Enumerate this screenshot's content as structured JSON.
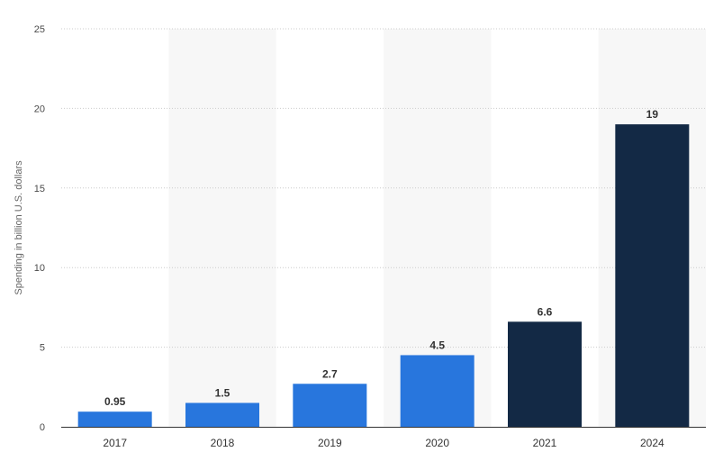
{
  "chart_data": {
    "type": "bar",
    "title": "",
    "xlabel": "",
    "ylabel": "Spending in billion U.S. dollars",
    "categories": [
      "2017",
      "2018",
      "2019",
      "2020",
      "2021",
      "2024"
    ],
    "values": [
      0.95,
      1.5,
      2.7,
      4.5,
      6.6,
      19
    ],
    "value_labels": [
      "0.95",
      "1.5",
      "2.7",
      "4.5",
      "6.6",
      "19"
    ],
    "bar_colors": [
      "#2876dd",
      "#2876dd",
      "#2876dd",
      "#2876dd",
      "#132945",
      "#132945"
    ],
    "ylim": [
      0,
      25
    ],
    "yticks": [
      0,
      5,
      10,
      15,
      20,
      25
    ],
    "ytick_labels": [
      "0",
      "5",
      "10",
      "15",
      "20",
      "25"
    ],
    "grid": true,
    "alternating_column_shading": true,
    "shade_color": "#f7f7f7",
    "grid_color": "#cccccc"
  }
}
